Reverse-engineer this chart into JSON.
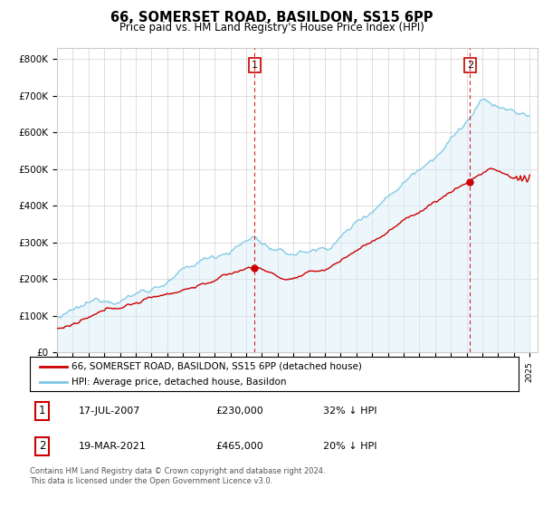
{
  "title": "66, SOMERSET ROAD, BASILDON, SS15 6PP",
  "subtitle": "Price paid vs. HM Land Registry's House Price Index (HPI)",
  "y_ticks": [
    0,
    100000,
    200000,
    300000,
    400000,
    500000,
    600000,
    700000,
    800000
  ],
  "y_labels": [
    "£0",
    "£100K",
    "£200K",
    "£300K",
    "£400K",
    "£500K",
    "£600K",
    "£700K",
    "£800K"
  ],
  "hpi_color": "#7ec8e3",
  "hpi_fill_color": "#daeef8",
  "price_color": "#cc0000",
  "marker1_year": 2007.54,
  "marker1_price": 230000,
  "marker2_year": 2021.22,
  "marker2_price": 465000,
  "legend_label1": "66, SOMERSET ROAD, BASILDON, SS15 6PP (detached house)",
  "legend_label2": "HPI: Average price, detached house, Basildon",
  "table_row1": [
    "1",
    "17-JUL-2007",
    "£230,000",
    "32% ↓ HPI"
  ],
  "table_row2": [
    "2",
    "19-MAR-2021",
    "£465,000",
    "20% ↓ HPI"
  ],
  "footnote": "Contains HM Land Registry data © Crown copyright and database right 2024.\nThis data is licensed under the Open Government Licence v3.0."
}
